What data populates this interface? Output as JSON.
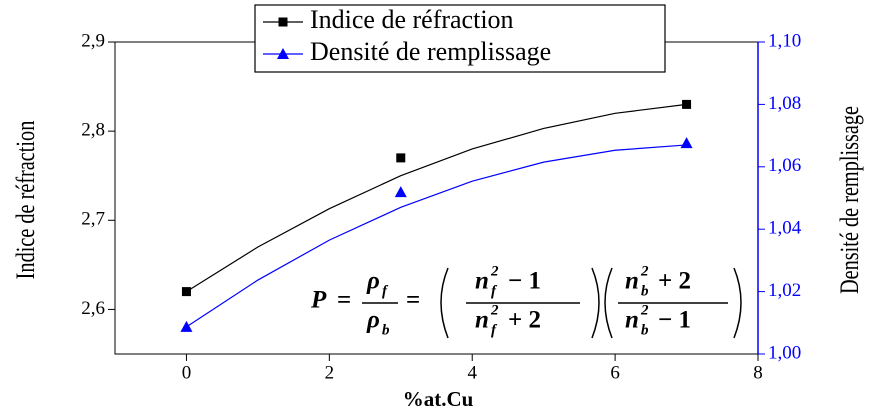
{
  "chart_data": {
    "type": "scatter",
    "x_label": "%at.Cu",
    "y_label": "Indice de réfraction",
    "y2_label": "Densité de remplissage",
    "x": [
      0,
      3,
      7
    ],
    "fit_x": [
      0,
      1,
      2,
      3,
      4,
      5,
      6,
      7
    ],
    "series": [
      {
        "name": "Indice de réfraction",
        "color": "#000000",
        "marker": "square",
        "axis": "y",
        "values": [
          2.62,
          2.77,
          2.83
        ],
        "fit_values": [
          2.62,
          2.67,
          2.713,
          2.75,
          2.78,
          2.803,
          2.82,
          2.83
        ]
      },
      {
        "name": "Densité de remplissage",
        "color": "#0000ff",
        "marker": "triangle",
        "axis": "y2",
        "values": [
          1.0087,
          1.0519,
          1.0676
        ],
        "fit_values": [
          1.0087,
          1.0237,
          1.0365,
          1.047,
          1.0554,
          1.0615,
          1.0653,
          1.067
        ]
      }
    ],
    "xlim": [
      -1,
      8
    ],
    "xticks": [
      0,
      2,
      4,
      6,
      8
    ],
    "ylim": [
      2.55,
      2.9
    ],
    "yticks": [
      {
        "value": 2.6,
        "label": "2,6"
      },
      {
        "value": 2.7,
        "label": "2,7"
      },
      {
        "value": 2.8,
        "label": "2,8"
      },
      {
        "value": 2.9,
        "label": "2,9"
      }
    ],
    "y2lim": [
      1.0,
      1.1
    ],
    "y2ticks": [
      {
        "value": 1.0,
        "label": "1,00"
      },
      {
        "value": 1.02,
        "label": "1,02"
      },
      {
        "value": 1.04,
        "label": "1,04"
      },
      {
        "value": 1.06,
        "label": "1,06"
      },
      {
        "value": 1.08,
        "label": "1,08"
      },
      {
        "value": 1.1,
        "label": "1,10"
      }
    ],
    "y2color": "#0000ff",
    "legend": "top",
    "formula": {
      "P": "P",
      "eq": "=",
      "rho": "ρ",
      "n": "n",
      "two": "2",
      "f": "f",
      "b": "b",
      "minus_one": "− 1",
      "plus_two": "+ 2"
    }
  }
}
